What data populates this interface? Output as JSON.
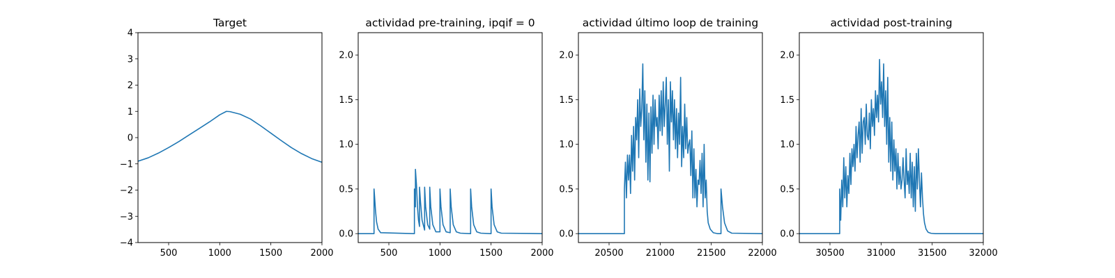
{
  "chart_data": [
    {
      "type": "line",
      "title": "Target",
      "xlim": [
        200,
        2000
      ],
      "ylim": [
        -4,
        4
      ],
      "xticks": [
        500,
        1000,
        1500,
        2000
      ],
      "yticks": [
        -4,
        -3,
        -2,
        -1,
        0,
        1,
        2,
        3,
        4
      ],
      "xtick_labels": [
        "500",
        "1000",
        "1500",
        "2000"
      ],
      "ytick_labels": [
        "−4",
        "−3",
        "−2",
        "−1",
        "0",
        "1",
        "2",
        "3",
        "4"
      ],
      "series": [
        {
          "color": "#1f77b4",
          "x": [
            200,
            300,
            400,
            500,
            600,
            700,
            800,
            900,
            1000,
            1065,
            1100,
            1200,
            1300,
            1400,
            1500,
            1600,
            1700,
            1800,
            1900,
            2000
          ],
          "y": [
            -0.9,
            -0.77,
            -0.59,
            -0.38,
            -0.15,
            0.1,
            0.35,
            0.6,
            0.87,
            1.0,
            0.99,
            0.89,
            0.71,
            0.45,
            0.17,
            -0.11,
            -0.38,
            -0.61,
            -0.8,
            -0.94
          ]
        }
      ]
    },
    {
      "type": "line",
      "title": "actividad pre-training, ipqif = 0",
      "xlim": [
        200,
        2000
      ],
      "ylim": [
        -0.1,
        2.25
      ],
      "xticks": [
        500,
        1000,
        1500,
        2000
      ],
      "yticks": [
        0,
        0.5,
        1,
        1.5,
        2
      ],
      "xtick_labels": [
        "500",
        "1000",
        "1500",
        "2000"
      ],
      "ytick_labels": [
        "0.0",
        "0.5",
        "1.0",
        "1.5",
        "2.0"
      ],
      "series": [
        {
          "color": "#1f77b4",
          "x": [
            200,
            355,
            355,
            360,
            370,
            380,
            395,
            420,
            750,
            750,
            755,
            760,
            760,
            770,
            780,
            790,
            800,
            800,
            810,
            825,
            850,
            850,
            860,
            880,
            900,
            900,
            910,
            930,
            960,
            1000,
            1000,
            1010,
            1030,
            1060,
            1100,
            1100,
            1110,
            1130,
            1160,
            1200,
            1300,
            1300,
            1310,
            1330,
            1360,
            1400,
            1500,
            1500,
            1510,
            1530,
            1560,
            1600,
            2000
          ],
          "y": [
            0,
            0,
            0.5,
            0.42,
            0.25,
            0.13,
            0.05,
            0.01,
            0,
            0.5,
            0.4,
            0.3,
            0.72,
            0.55,
            0.3,
            0.15,
            0.08,
            0.52,
            0.35,
            0.15,
            0.04,
            0.52,
            0.3,
            0.1,
            0.05,
            0.52,
            0.3,
            0.1,
            0.02,
            0.02,
            0.5,
            0.3,
            0.1,
            0.02,
            0.01,
            0.5,
            0.3,
            0.1,
            0.02,
            0.005,
            0,
            0.5,
            0.3,
            0.1,
            0.02,
            0.005,
            0,
            0.5,
            0.3,
            0.1,
            0.02,
            0.005,
            0
          ]
        }
      ]
    },
    {
      "type": "line",
      "title": "actividad último loop de training",
      "xlim": [
        20200,
        22000
      ],
      "ylim": [
        -0.1,
        2.25
      ],
      "xticks": [
        20500,
        21000,
        21500,
        22000
      ],
      "yticks": [
        0,
        0.5,
        1,
        1.5,
        2
      ],
      "xtick_labels": [
        "20500",
        "21000",
        "21500",
        "22000"
      ],
      "ytick_labels": [
        "0.0",
        "0.5",
        "1.0",
        "1.5",
        "2.0"
      ],
      "series": [
        {
          "color": "#1f77b4",
          "x": [
            20200,
            20650,
            20650,
            20660,
            20670,
            20680,
            20690,
            20700,
            20710,
            20720,
            20730,
            20740,
            20750,
            20760,
            20770,
            20780,
            20790,
            20800,
            20810,
            20820,
            20830,
            20840,
            20850,
            20860,
            20870,
            20880,
            20890,
            20900,
            20910,
            20920,
            20930,
            20940,
            20950,
            20960,
            20970,
            20980,
            20990,
            21000,
            21010,
            21020,
            21030,
            21040,
            21050,
            21060,
            21070,
            21080,
            21090,
            21100,
            21110,
            21120,
            21130,
            21140,
            21150,
            21160,
            21170,
            21180,
            21190,
            21200,
            21210,
            21220,
            21230,
            21240,
            21250,
            21260,
            21270,
            21280,
            21290,
            21300,
            21310,
            21320,
            21330,
            21340,
            21350,
            21360,
            21370,
            21380,
            21390,
            21400,
            21410,
            21420,
            21430,
            21440,
            21450,
            21460,
            21470,
            21490,
            21520,
            21560,
            21595,
            21595,
            21610,
            21630,
            21660,
            21700,
            22000
          ],
          "y": [
            0,
            0,
            0.5,
            0.8,
            0.4,
            0.88,
            0.6,
            0.88,
            0.45,
            1.1,
            0.7,
            1.2,
            0.6,
            1.3,
            1.05,
            1.5,
            0.85,
            1.62,
            1.2,
            1.4,
            1.9,
            1.05,
            1.6,
            0.8,
            1.45,
            0.6,
            1.35,
            0.58,
            1.42,
            0.9,
            1.55,
            1.0,
            1.5,
            1.2,
            1.3,
            0.95,
            1.55,
            1.15,
            1.6,
            1.1,
            1.7,
            1.2,
            1.45,
            1.75,
            1.0,
            1.5,
            0.7,
            1.7,
            1.25,
            1.6,
            1.05,
            1.5,
            0.95,
            1.4,
            0.85,
            1.35,
            1.0,
            1.75,
            0.75,
            1.2,
            0.85,
            1.45,
            0.95,
            1.3,
            0.9,
            1.0,
            1.05,
            0.65,
            1.15,
            0.4,
            0.95,
            0.4,
            0.72,
            0.3,
            0.6,
            0.55,
            0.82,
            0.45,
            0.9,
            0.3,
            1.0,
            0.4,
            0.6,
            0.25,
            0.12,
            0.05,
            0.01,
            0,
            0,
            0.5,
            0.3,
            0.12,
            0.03,
            0.005,
            0
          ]
        }
      ]
    },
    {
      "type": "line",
      "title": "actividad post-training",
      "xlim": [
        30200,
        32000
      ],
      "ylim": [
        -0.1,
        2.25
      ],
      "xticks": [
        30500,
        31000,
        31500,
        32000
      ],
      "yticks": [
        0,
        0.5,
        1,
        1.5,
        2
      ],
      "xtick_labels": [
        "30500",
        "31000",
        "31500",
        "32000"
      ],
      "ytick_labels": [
        "0.0",
        "0.5",
        "1.0",
        "1.5",
        "2.0"
      ],
      "series": [
        {
          "color": "#1f77b4",
          "x": [
            30200,
            30595,
            30595,
            30605,
            30615,
            30625,
            30635,
            30645,
            30655,
            30665,
            30675,
            30685,
            30695,
            30705,
            30715,
            30725,
            30735,
            30745,
            30755,
            30765,
            30775,
            30785,
            30795,
            30805,
            30815,
            30825,
            30835,
            30845,
            30855,
            30865,
            30875,
            30885,
            30895,
            30905,
            30915,
            30925,
            30935,
            30945,
            30955,
            30965,
            30975,
            30985,
            30995,
            31005,
            31015,
            31025,
            31035,
            31045,
            31055,
            31065,
            31075,
            31085,
            31095,
            31105,
            31115,
            31125,
            31135,
            31145,
            31155,
            31165,
            31175,
            31185,
            31195,
            31205,
            31215,
            31225,
            31235,
            31245,
            31255,
            31265,
            31275,
            31285,
            31295,
            31305,
            31315,
            31325,
            31335,
            31345,
            31355,
            31365,
            31375,
            31385,
            31395,
            31405,
            31415,
            31425,
            31440,
            31460,
            31490,
            31530,
            32000
          ],
          "y": [
            0,
            0,
            0.5,
            0.15,
            0.6,
            0.3,
            0.85,
            0.4,
            0.75,
            0.3,
            0.65,
            0.45,
            0.9,
            0.55,
            0.95,
            0.75,
            1.0,
            0.7,
            1.2,
            0.85,
            1.1,
            1.25,
            0.8,
            1.4,
            0.9,
            1.25,
            1.3,
            1.0,
            1.45,
            1.1,
            1.05,
            1.35,
            0.95,
            1.5,
            1.2,
            1.4,
            1.1,
            1.6,
            1.3,
            1.55,
            1.25,
            1.95,
            1.45,
            1.7,
            1.3,
            1.9,
            1.2,
            1.6,
            1.0,
            1.75,
            0.8,
            1.3,
            0.7,
            1.25,
            0.6,
            1.05,
            0.7,
            0.95,
            0.5,
            0.9,
            0.55,
            0.75,
            0.5,
            0.6,
            0.85,
            0.6,
            0.4,
            0.95,
            0.55,
            0.7,
            0.45,
            0.9,
            0.4,
            0.8,
            0.3,
            0.75,
            0.25,
            0.9,
            0.5,
            0.95,
            0.6,
            0.3,
            0.68,
            0.4,
            0.22,
            0.12,
            0.05,
            0.015,
            0.003,
            0,
            0
          ]
        }
      ]
    }
  ]
}
